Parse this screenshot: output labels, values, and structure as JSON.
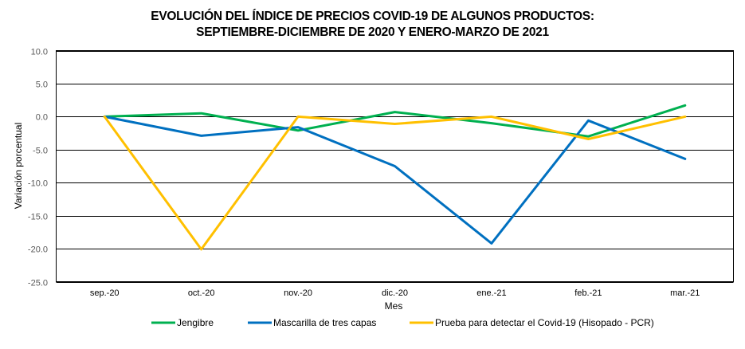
{
  "chart_data": {
    "type": "line",
    "title": "EVOLUCIÓN DEL ÍNDICE DE PRECIOS COVID-19 DE ALGUNOS PRODUCTOS:",
    "subtitle": "SEPTIEMBRE-DICIEMBRE DE 2020 Y ENERO-MARZO DE 2021",
    "xlabel": "Mes",
    "ylabel": "Variación porcentual",
    "categories": [
      "sep.-20",
      "oct.-20",
      "nov.-20",
      "dic.-20",
      "ene.-21",
      "feb.-21",
      "mar.-21"
    ],
    "ylim": [
      -25,
      10
    ],
    "yticks": [
      10,
      5,
      0,
      -5,
      -10,
      -15,
      -20,
      -25
    ],
    "ytick_labels": [
      "10.0",
      "5.0",
      "0.0",
      "-5.0",
      "-10.0",
      "-15.0",
      "-20.0",
      "-25.0"
    ],
    "grid": true,
    "legend_position": "bottom",
    "series": [
      {
        "name": "Jengibre",
        "color": "#00B050",
        "values": [
          0.0,
          0.5,
          -2.1,
          0.7,
          -1.0,
          -3.0,
          1.7
        ]
      },
      {
        "name": "Mascarilla de tres capas",
        "color": "#0070C0",
        "values": [
          0.0,
          -2.9,
          -1.6,
          -7.5,
          -19.2,
          -0.6,
          -6.4
        ]
      },
      {
        "name": "Prueba para detectar el Covid-19 (Hisopado - PCR)",
        "color": "#FFC000",
        "values": [
          0.0,
          -20.1,
          0.0,
          -1.1,
          0.0,
          -3.4,
          0.0
        ]
      }
    ]
  }
}
